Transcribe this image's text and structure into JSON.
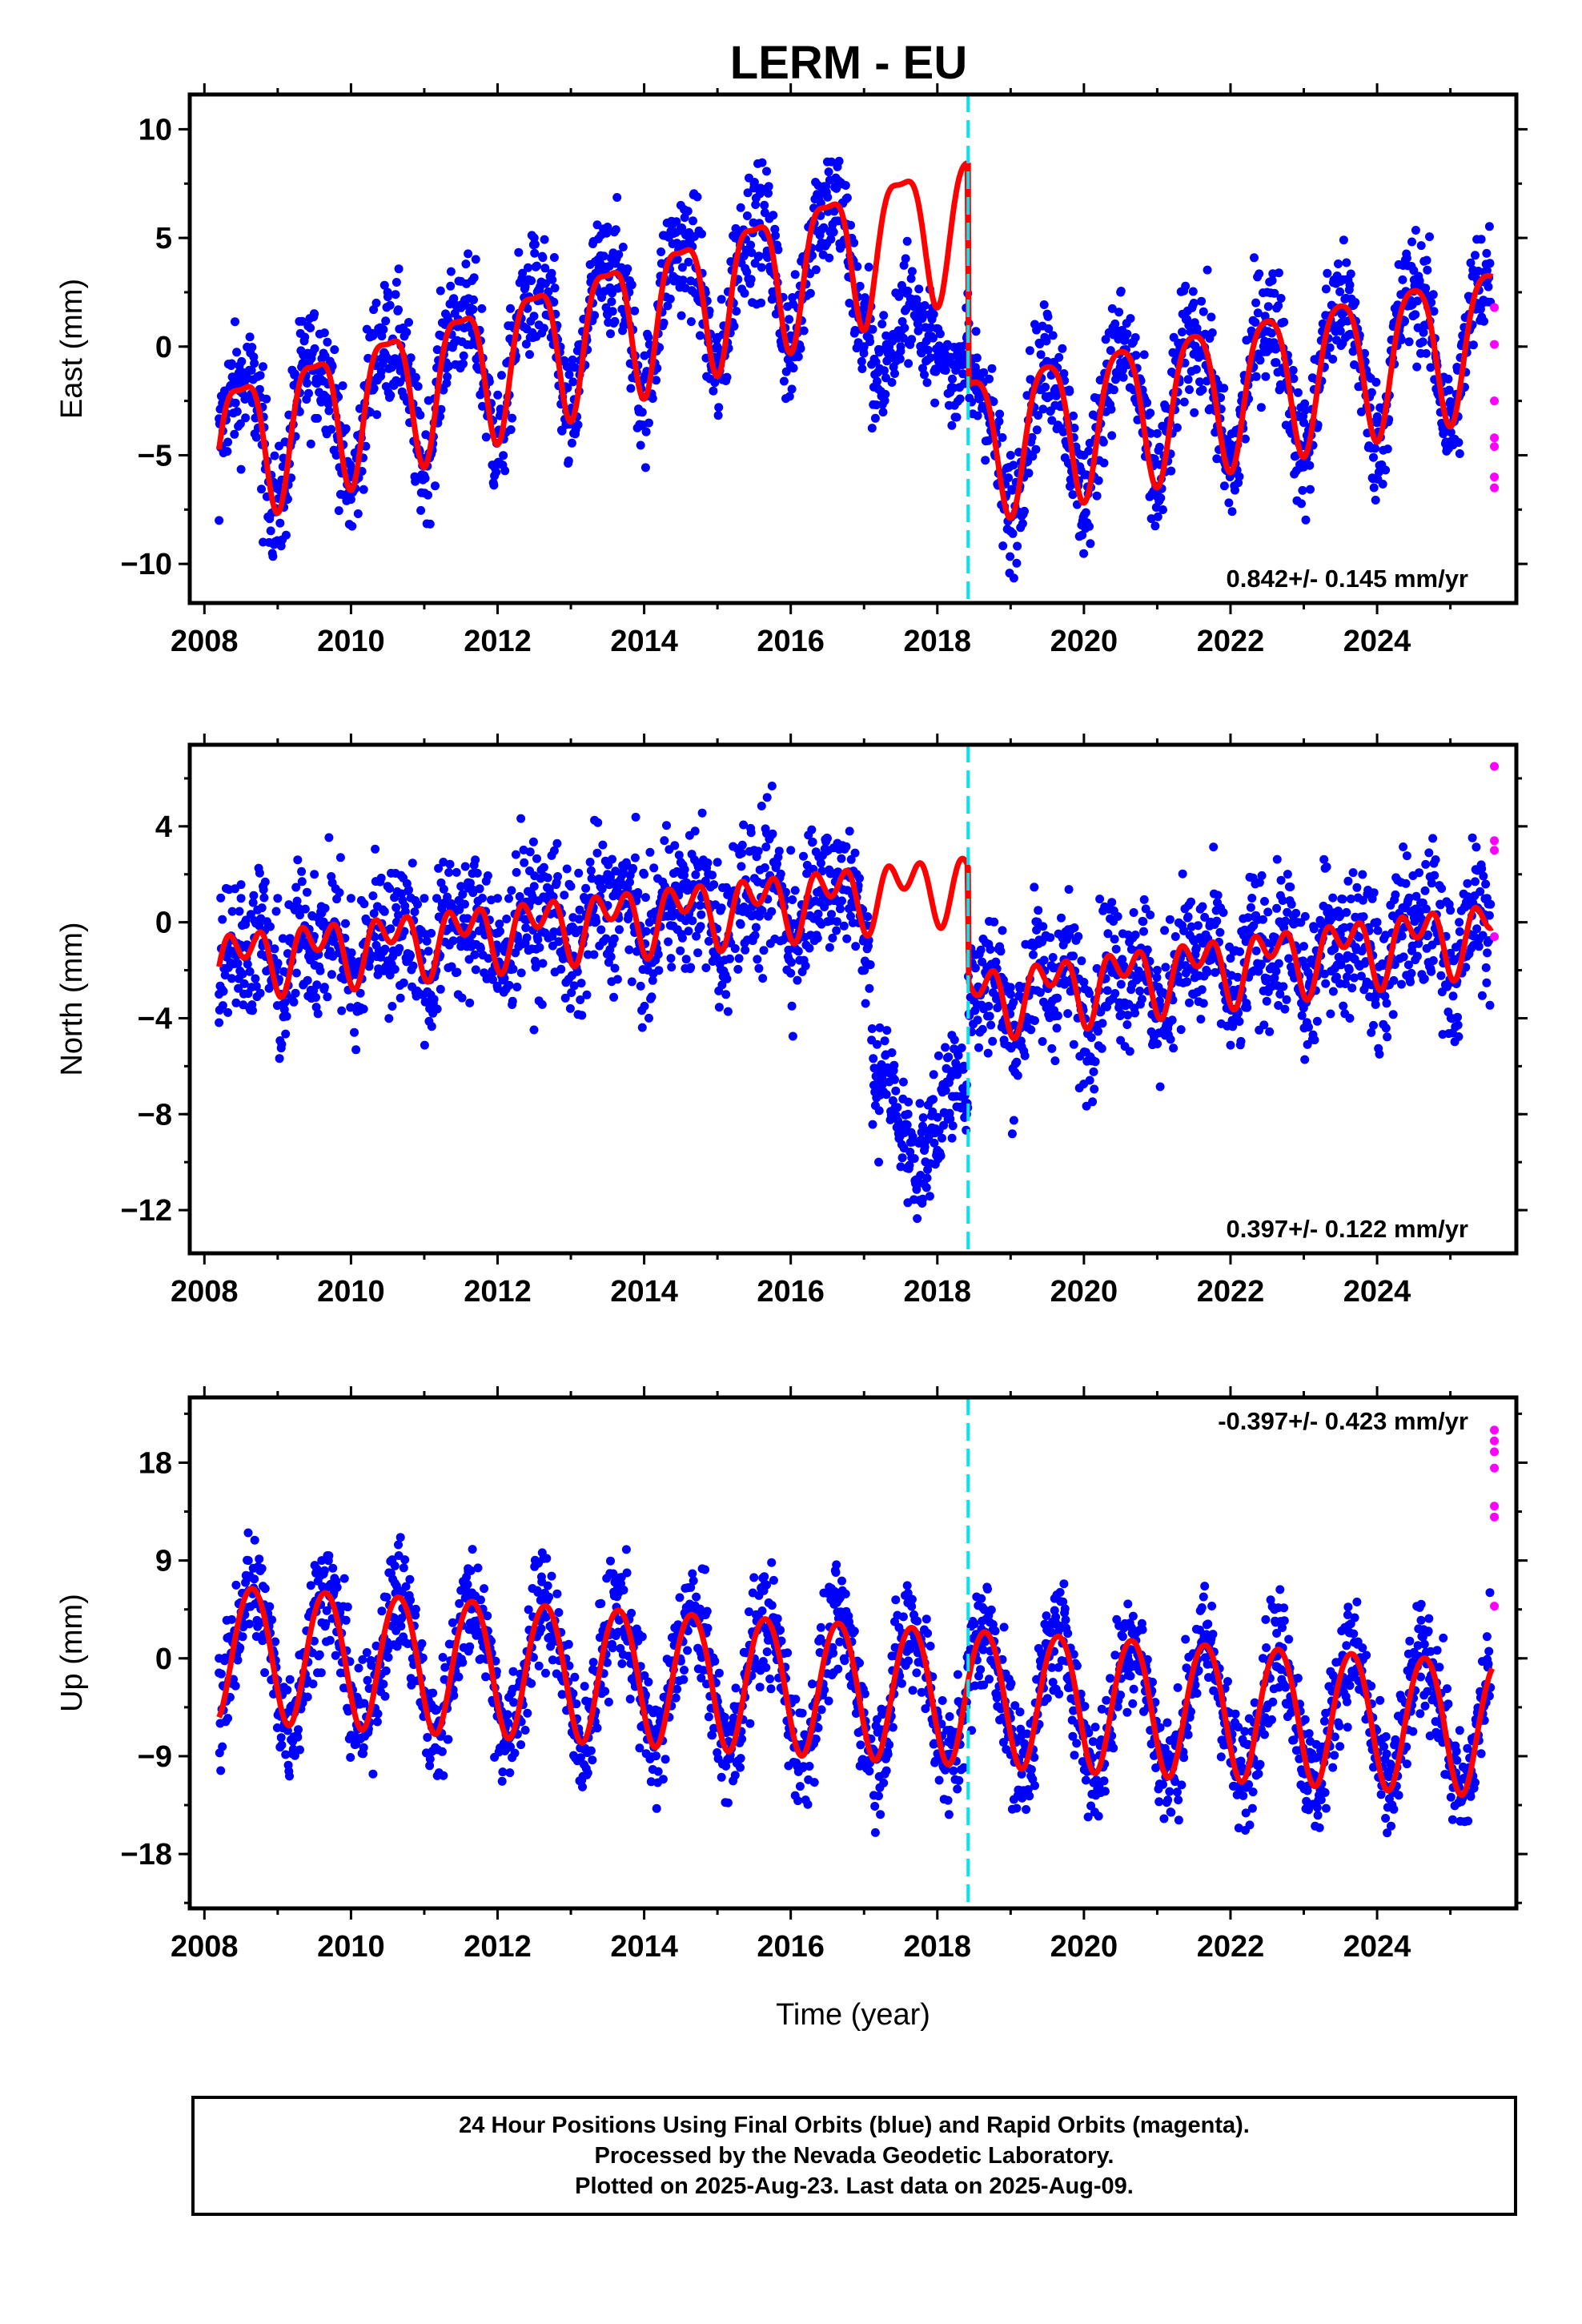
{
  "page": {
    "title": "LERM - EU"
  },
  "chart_data": [
    {
      "type": "scatter",
      "ylabel": "East (mm)",
      "ylim": [
        -11.8,
        11.6
      ],
      "xlim": [
        2007.8,
        2025.9
      ],
      "xticks": [
        2008,
        2010,
        2012,
        2014,
        2016,
        2018,
        2020,
        2022,
        2024
      ],
      "yticks": [
        -10,
        -5,
        0,
        5,
        10
      ],
      "annotation": "0.842+/- 0.145 mm/yr",
      "annotation_position": "bottom-right",
      "break_year": 2018.42,
      "series": [
        {
          "color": "#0000ff",
          "x": [
            2008.2,
            2008.5,
            2008.8,
            2009.0,
            2009.3,
            2009.5,
            2009.8,
            2010.0,
            2010.3,
            2010.5,
            2010.8,
            2011.0,
            2011.3,
            2011.5,
            2011.8,
            2012.0,
            2012.3,
            2012.5,
            2012.8,
            2013.0,
            2013.3,
            2013.5,
            2013.8,
            2014.0,
            2014.3,
            2014.5,
            2014.8,
            2015.0,
            2015.3,
            2015.5,
            2015.8,
            2016.0,
            2016.3,
            2016.5,
            2016.8,
            2017.0,
            2017.3,
            2017.5,
            2017.8,
            2018.0,
            2018.3,
            2018.7,
            2019.0,
            2019.3,
            2019.5,
            2019.8,
            2020.0,
            2020.3,
            2020.5,
            2020.8,
            2021.0,
            2021.3,
            2021.5,
            2021.8,
            2022.0,
            2022.3,
            2022.5,
            2022.8,
            2023.0,
            2023.3,
            2023.5,
            2023.8,
            2024.0,
            2024.3,
            2024.5,
            2024.8,
            2025.0,
            2025.3,
            2025.5
          ],
          "y": [
            -8.0,
            -1.5,
            -9.0,
            -6.5,
            -3.0,
            1.5,
            -5.0,
            -6.0,
            -2.0,
            2.5,
            -3.5,
            -5.5,
            -1.0,
            3.0,
            -2.0,
            -4.0,
            1.0,
            5.0,
            -0.5,
            -3.0,
            2.0,
            5.5,
            1.0,
            -1.5,
            3.0,
            6.5,
            2.0,
            -0.5,
            4.0,
            7.5,
            1.5,
            0.5,
            5.5,
            8.5,
            2.0,
            0.0,
            0.5,
            0.0,
            -1.0,
            -0.5,
            0.0,
            -2.5,
            -5.0,
            -3.0,
            1.5,
            -2.0,
            -5.0,
            -3.0,
            2.5,
            -2.0,
            -4.0,
            -1.5,
            2.0,
            -1.5,
            -4.5,
            -1.0,
            2.5,
            -1.5,
            -3.5,
            0.0,
            3.0,
            -1.0,
            -3.5,
            0.5,
            3.5,
            -0.5,
            -3.0,
            1.0,
            3.5
          ]
        },
        {
          "color": "#ff00ff",
          "x": [
            2025.6,
            2025.6,
            2025.6,
            2025.6,
            2025.6,
            2025.6,
            2025.6
          ],
          "y": [
            1.8,
            0.1,
            -2.5,
            -4.2,
            -4.6,
            -6.0,
            -6.5
          ]
        }
      ],
      "model_fit": {
        "color": "#ff0000",
        "description_params": {
          "trend_pre": [
            -4.5,
            1.0
          ],
          "trend_post": [
            -4.4,
            0.7
          ],
          "amplitude": 3.2,
          "offset_jump": -8.3
        }
      }
    },
    {
      "type": "scatter",
      "ylabel": "North (mm)",
      "ylim": [
        -13.8,
        7.4
      ],
      "xlim": [
        2007.8,
        2025.9
      ],
      "xticks": [
        2008,
        2010,
        2012,
        2014,
        2016,
        2018,
        2020,
        2022,
        2024
      ],
      "yticks": [
        -12,
        -8,
        -4,
        0,
        4
      ],
      "annotation": "0.397+/- 0.122 mm/yr",
      "annotation_position": "bottom-right",
      "break_year": 2018.42,
      "series": [
        {
          "color": "#0000ff",
          "x": [
            2008.2,
            2008.5,
            2008.8,
            2009.0,
            2009.5,
            2010.0,
            2010.5,
            2011.0,
            2011.5,
            2012.0,
            2012.5,
            2013.0,
            2013.5,
            2014.0,
            2014.5,
            2015.0,
            2015.5,
            2016.0,
            2016.5,
            2016.9,
            2017.2,
            2017.4,
            2017.6,
            2017.8,
            2018.0,
            2018.2,
            2018.4,
            2018.7,
            2019.0,
            2019.5,
            2020.0,
            2020.5,
            2021.0,
            2021.5,
            2022.0,
            2022.5,
            2023.0,
            2023.5,
            2024.0,
            2024.5,
            2025.0,
            2025.5
          ],
          "y": [
            -3.0,
            1.0,
            1.5,
            1.0,
            2.0,
            1.0,
            1.5,
            1.0,
            1.5,
            1.0,
            1.5,
            1.5,
            2.0,
            2.0,
            2.5,
            2.5,
            3.0,
            3.0,
            3.5,
            2.0,
            -10.0,
            -6.5,
            -8.0,
            -8.5,
            -9.5,
            -9.0,
            -8.0,
            -3.5,
            -3.0,
            -2.5,
            -2.5,
            -2.0,
            -2.0,
            -2.0,
            -1.5,
            -1.5,
            -1.0,
            -0.5,
            0.0,
            0.5,
            0.5,
            1.0
          ]
        },
        {
          "color": "#ff00ff",
          "x": [
            2025.6,
            2025.6,
            2025.6,
            2025.6
          ],
          "y": [
            6.5,
            3.4,
            3.0,
            -0.6
          ]
        }
      ],
      "model_fit": {
        "color": "#ff0000"
      }
    },
    {
      "type": "scatter",
      "ylabel": "Up (mm)",
      "xlabel": "Time (year)",
      "ylim": [
        -23,
        24
      ],
      "xlim": [
        2007.8,
        2025.9
      ],
      "xticks": [
        2008,
        2010,
        2012,
        2014,
        2016,
        2018,
        2020,
        2022,
        2024
      ],
      "yticks": [
        -18,
        -9,
        0,
        9,
        18
      ],
      "annotation": "-0.397+/- 0.423 mm/yr",
      "annotation_position": "top-right",
      "break_year": 2018.42,
      "series": [
        {
          "color": "#0000ff",
          "x": [
            2008.2,
            2008.6,
            2009.0,
            2009.6,
            2010.0,
            2010.6,
            2011.0,
            2011.6,
            2012.0,
            2012.6,
            2013.0,
            2013.6,
            2014.0,
            2014.6,
            2015.0,
            2015.6,
            2016.0,
            2016.6,
            2017.0,
            2017.6,
            2018.0,
            2018.6,
            2019.0,
            2019.6,
            2020.0,
            2020.6,
            2021.0,
            2021.6,
            2022.0,
            2022.6,
            2023.0,
            2023.6,
            2024.0,
            2024.6,
            2025.0,
            2025.5
          ],
          "y": [
            0.0,
            9.0,
            -2.0,
            9.0,
            -2.5,
            8.5,
            -3.0,
            8.0,
            -3.5,
            7.5,
            -3.5,
            7.0,
            -4.0,
            6.5,
            -4.5,
            6.5,
            -5.0,
            6.0,
            -5.0,
            6.0,
            -5.0,
            5.5,
            -5.5,
            5.5,
            -6.0,
            5.0,
            -6.5,
            4.5,
            -6.5,
            4.5,
            -7.0,
            4.0,
            -7.5,
            3.5,
            -8.0,
            2.0
          ]
        },
        {
          "color": "#ff00ff",
          "x": [
            2025.6,
            2025.6,
            2025.6,
            2025.6,
            2025.6,
            2025.6,
            2025.6
          ],
          "y": [
            21.0,
            20.0,
            19.0,
            17.5,
            14.0,
            13.0,
            4.8
          ]
        }
      ],
      "model_fit": {
        "color": "#ff0000"
      }
    }
  ],
  "footer": {
    "line1": "24 Hour Positions Using Final Orbits (blue) and Rapid Orbits (magenta).",
    "line2": "Processed by the Nevada Geodetic Laboratory.",
    "line3": "Plotted on 2025-Aug-23. Last data on 2025-Aug-09."
  },
  "colors": {
    "final": "#0000ff",
    "rapid": "#ff00ff",
    "model": "#ff0000",
    "break": "#00e5ee"
  }
}
